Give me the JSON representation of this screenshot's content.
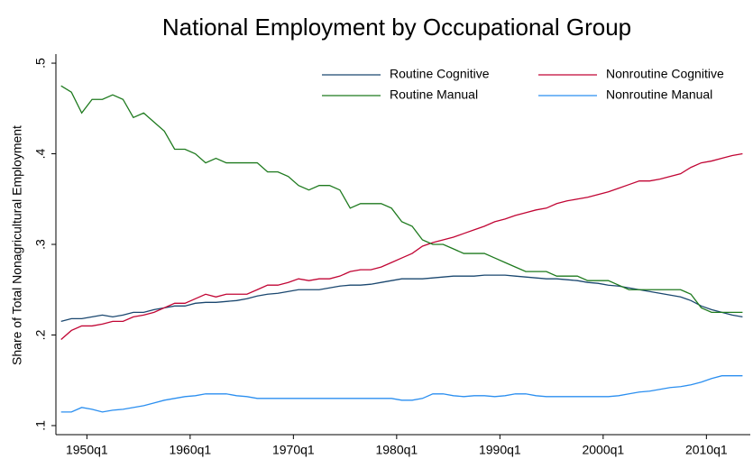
{
  "chart_data": {
    "type": "line",
    "title": "National Employment by Occupational Group",
    "y_label": "Share of Total Nonagricultural Employment",
    "x": [
      1947.5,
      1948.5,
      1949.5,
      1950.5,
      1951.5,
      1952.5,
      1953.5,
      1954.5,
      1955.5,
      1956.5,
      1957.5,
      1958.5,
      1959.5,
      1960.5,
      1961.5,
      1962.5,
      1963.5,
      1964.5,
      1965.5,
      1966.5,
      1967.5,
      1968.5,
      1969.5,
      1970.5,
      1971.5,
      1972.5,
      1973.5,
      1974.5,
      1975.5,
      1976.5,
      1977.5,
      1978.5,
      1979.5,
      1980.5,
      1981.5,
      1982.5,
      1983.5,
      1984.5,
      1985.5,
      1986.5,
      1987.5,
      1988.5,
      1989.5,
      1990.5,
      1991.5,
      1992.5,
      1993.5,
      1994.5,
      1995.5,
      1996.5,
      1997.5,
      1998.5,
      1999.5,
      2000.5,
      2001.5,
      2002.5,
      2003.5,
      2004.5,
      2005.5,
      2006.5,
      2007.5,
      2008.5,
      2009.5,
      2010.5,
      2011.5,
      2012.5,
      2013.5
    ],
    "series": [
      {
        "name": "Routine Cognitive",
        "color": "#1a476f",
        "values": [
          0.215,
          0.218,
          0.218,
          0.22,
          0.222,
          0.22,
          0.222,
          0.225,
          0.225,
          0.228,
          0.23,
          0.232,
          0.232,
          0.235,
          0.236,
          0.236,
          0.237,
          0.238,
          0.24,
          0.243,
          0.245,
          0.246,
          0.248,
          0.25,
          0.25,
          0.25,
          0.252,
          0.254,
          0.255,
          0.255,
          0.256,
          0.258,
          0.26,
          0.262,
          0.262,
          0.262,
          0.263,
          0.264,
          0.265,
          0.265,
          0.265,
          0.266,
          0.266,
          0.266,
          0.265,
          0.264,
          0.263,
          0.262,
          0.262,
          0.261,
          0.26,
          0.258,
          0.257,
          0.255,
          0.254,
          0.252,
          0.25,
          0.248,
          0.246,
          0.244,
          0.242,
          0.238,
          0.232,
          0.228,
          0.225,
          0.222,
          0.22
        ]
      },
      {
        "name": "Nonroutine Cognitive",
        "color": "#c10534",
        "values": [
          0.195,
          0.205,
          0.21,
          0.21,
          0.212,
          0.215,
          0.215,
          0.22,
          0.222,
          0.225,
          0.23,
          0.235,
          0.235,
          0.24,
          0.245,
          0.242,
          0.245,
          0.245,
          0.245,
          0.25,
          0.255,
          0.255,
          0.258,
          0.262,
          0.26,
          0.262,
          0.262,
          0.265,
          0.27,
          0.272,
          0.272,
          0.275,
          0.28,
          0.285,
          0.29,
          0.298,
          0.302,
          0.305,
          0.308,
          0.312,
          0.316,
          0.32,
          0.325,
          0.328,
          0.332,
          0.335,
          0.338,
          0.34,
          0.345,
          0.348,
          0.35,
          0.352,
          0.355,
          0.358,
          0.362,
          0.366,
          0.37,
          0.37,
          0.372,
          0.375,
          0.378,
          0.385,
          0.39,
          0.392,
          0.395,
          0.398,
          0.4
        ]
      },
      {
        "name": "Routine Manual",
        "color": "#1e7a1e",
        "values": [
          0.475,
          0.468,
          0.445,
          0.46,
          0.46,
          0.465,
          0.46,
          0.44,
          0.445,
          0.435,
          0.425,
          0.405,
          0.405,
          0.4,
          0.39,
          0.395,
          0.39,
          0.39,
          0.39,
          0.39,
          0.38,
          0.38,
          0.375,
          0.365,
          0.36,
          0.365,
          0.365,
          0.36,
          0.34,
          0.345,
          0.345,
          0.345,
          0.34,
          0.325,
          0.32,
          0.305,
          0.3,
          0.3,
          0.295,
          0.29,
          0.29,
          0.29,
          0.285,
          0.28,
          0.275,
          0.27,
          0.27,
          0.27,
          0.265,
          0.265,
          0.265,
          0.26,
          0.26,
          0.26,
          0.255,
          0.25,
          0.25,
          0.25,
          0.25,
          0.25,
          0.25,
          0.245,
          0.23,
          0.225,
          0.225,
          0.225,
          0.225
        ]
      },
      {
        "name": "Nonroutine Manual",
        "color": "#2b8ff0",
        "values": [
          0.115,
          0.115,
          0.12,
          0.118,
          0.115,
          0.117,
          0.118,
          0.12,
          0.122,
          0.125,
          0.128,
          0.13,
          0.132,
          0.133,
          0.135,
          0.135,
          0.135,
          0.133,
          0.132,
          0.13,
          0.13,
          0.13,
          0.13,
          0.13,
          0.13,
          0.13,
          0.13,
          0.13,
          0.13,
          0.13,
          0.13,
          0.13,
          0.13,
          0.128,
          0.128,
          0.13,
          0.135,
          0.135,
          0.133,
          0.132,
          0.133,
          0.133,
          0.132,
          0.133,
          0.135,
          0.135,
          0.133,
          0.132,
          0.132,
          0.132,
          0.132,
          0.132,
          0.132,
          0.132,
          0.133,
          0.135,
          0.137,
          0.138,
          0.14,
          0.142,
          0.143,
          0.145,
          0.148,
          0.152,
          0.155,
          0.155,
          0.155
        ]
      }
    ],
    "xlim": [
      1947,
      2014.25
    ],
    "xticks": [
      {
        "value": 1950,
        "label": "1950q1"
      },
      {
        "value": 1960,
        "label": "1960q1"
      },
      {
        "value": 1970,
        "label": "1970q1"
      },
      {
        "value": 1980,
        "label": "1980q1"
      },
      {
        "value": 1990,
        "label": "1990q1"
      },
      {
        "value": 2000,
        "label": "2000q1"
      },
      {
        "value": 2010,
        "label": "2010q1"
      }
    ],
    "ylim": [
      0.09,
      0.51
    ],
    "yticks": [
      {
        "value": 0.1,
        "label": ".1"
      },
      {
        "value": 0.2,
        "label": ".2"
      },
      {
        "value": 0.3,
        "label": ".3"
      },
      {
        "value": 0.4,
        "label": ".4"
      },
      {
        "value": 0.5,
        "label": ".5"
      }
    ],
    "grid": false
  }
}
